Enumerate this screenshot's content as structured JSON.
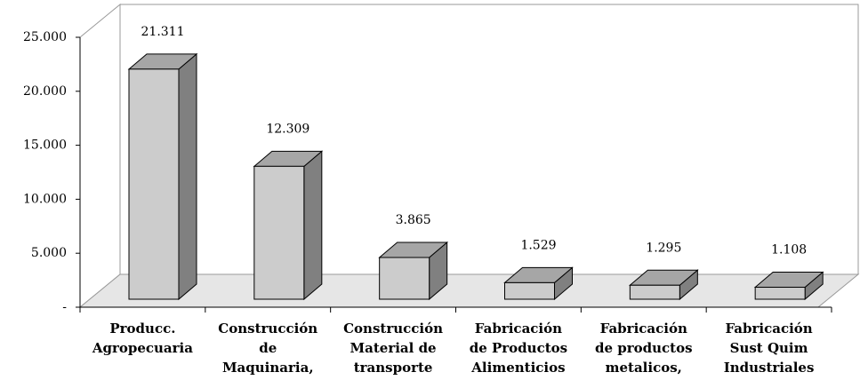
{
  "chart_data": {
    "type": "bar3d",
    "categories": [
      "Producc.\nAgropecuaria",
      "Construcción\nde\nMaquinaria,",
      "Construcción\nMaterial de\ntransporte",
      "Fabricación\nde Productos\nAlimenticios",
      "Fabricación\nde productos\nmetalicos,",
      "Fabricación\nSust Quim\nIndustriales"
    ],
    "values": [
      21311,
      12309,
      3865,
      1529,
      1295,
      1108
    ],
    "value_labels": [
      "21.311",
      "12.309",
      "3.865",
      "1.529",
      "1.295",
      "1.108"
    ],
    "color": "#cccccc",
    "ylim": [
      0,
      25000
    ],
    "yticks": [
      {
        "value": 0,
        "label": "-"
      },
      {
        "value": 5000,
        "label": "5.000"
      },
      {
        "value": 10000,
        "label": "10.000"
      },
      {
        "value": 15000,
        "label": "15.000"
      },
      {
        "value": 20000,
        "label": "20.000"
      },
      {
        "value": 25000,
        "label": "25.000"
      }
    ]
  }
}
